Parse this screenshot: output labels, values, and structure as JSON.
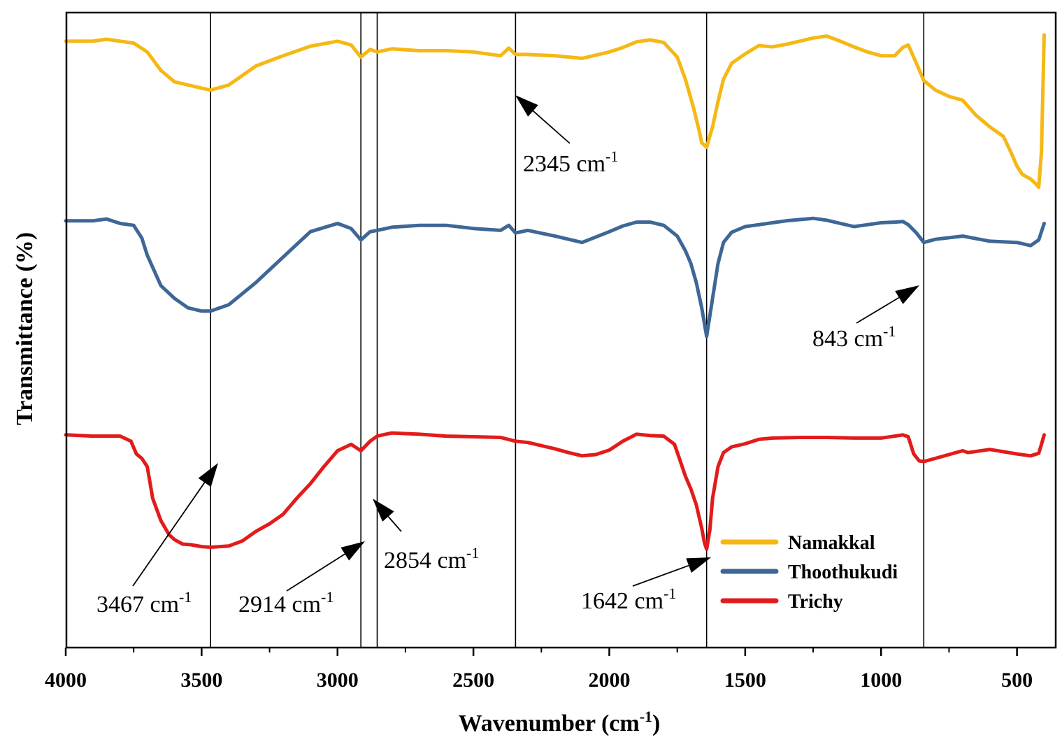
{
  "chart_data": {
    "type": "line",
    "title": "",
    "xlabel": "Wavenumber (cm",
    "xlabel_sup": "-1",
    "xlabel_tail": ")",
    "ylabel": "Transmittance (%)",
    "xlim": [
      4000,
      400
    ],
    "x_reversed": true,
    "ylim": [
      0,
      100
    ],
    "grid": false,
    "legend_position": "bottom-right",
    "x_ticks": [
      4000,
      3500,
      3000,
      2500,
      2000,
      1500,
      1000,
      500
    ],
    "x_tick_labels": [
      "4000",
      "3500",
      "3000",
      "2500",
      "2000",
      "1500",
      "1000",
      "500"
    ],
    "unit_label": "cm",
    "unit_sup": "-1",
    "reference_lines": [
      3467,
      2914,
      2854,
      2345,
      1642,
      843
    ],
    "annotations": [
      {
        "value": "2345",
        "points_to": 2345
      },
      {
        "value": "843",
        "points_to": 843
      },
      {
        "value": "3467",
        "points_to": 3467
      },
      {
        "value": "2914",
        "points_to": 2914
      },
      {
        "value": "2854",
        "points_to": 2854
      },
      {
        "value": "1642",
        "points_to": 1642
      }
    ],
    "series": [
      {
        "name": "Namakkal",
        "color": "#F5B814",
        "x": [
          4000,
          3900,
          3850,
          3800,
          3750,
          3700,
          3650,
          3600,
          3550,
          3500,
          3467,
          3400,
          3300,
          3200,
          3100,
          3000,
          2950,
          2914,
          2880,
          2854,
          2800,
          2700,
          2600,
          2500,
          2400,
          2370,
          2345,
          2300,
          2200,
          2100,
          2000,
          1950,
          1900,
          1850,
          1800,
          1750,
          1720,
          1690,
          1670,
          1660,
          1642,
          1620,
          1600,
          1580,
          1550,
          1500,
          1450,
          1400,
          1350,
          1300,
          1250,
          1200,
          1150,
          1100,
          1050,
          1000,
          950,
          920,
          900,
          870,
          843,
          800,
          750,
          700,
          650,
          600,
          550,
          520,
          500,
          480,
          450,
          430,
          420,
          410,
          400
        ],
        "values": [
          95.5,
          95.5,
          95.8,
          95.5,
          95.2,
          93.8,
          90.9,
          89.1,
          88.6,
          88.1,
          87.8,
          88.6,
          91.6,
          93.2,
          94.7,
          95.5,
          94.9,
          93.0,
          94.2,
          93.8,
          94.3,
          94.0,
          94.0,
          93.8,
          93.2,
          94.4,
          93.4,
          93.4,
          93.2,
          92.8,
          93.8,
          94.5,
          95.4,
          95.7,
          95.3,
          93.0,
          89.5,
          85.0,
          81.5,
          79.5,
          78.8,
          82.0,
          86.0,
          89.5,
          92.0,
          93.5,
          94.8,
          94.6,
          95.0,
          95.5,
          96.0,
          96.3,
          95.5,
          94.6,
          93.8,
          93.2,
          93.2,
          94.5,
          94.9,
          92.0,
          89.3,
          87.8,
          86.8,
          86.2,
          83.8,
          82.0,
          80.5,
          77.8,
          75.8,
          74.5,
          73.8,
          73.0,
          72.5,
          78.0,
          96.5
        ]
      },
      {
        "name": "Thoothukudi",
        "color": "#3E6796",
        "x": [
          4000,
          3900,
          3850,
          3800,
          3750,
          3720,
          3700,
          3650,
          3600,
          3550,
          3500,
          3467,
          3400,
          3300,
          3200,
          3100,
          3000,
          2950,
          2914,
          2880,
          2854,
          2800,
          2700,
          2600,
          2500,
          2400,
          2370,
          2345,
          2300,
          2200,
          2100,
          2000,
          1950,
          1900,
          1850,
          1800,
          1750,
          1720,
          1700,
          1680,
          1660,
          1642,
          1620,
          1600,
          1580,
          1550,
          1500,
          1450,
          1400,
          1350,
          1300,
          1250,
          1200,
          1100,
          1050,
          1000,
          950,
          920,
          900,
          870,
          843,
          800,
          700,
          600,
          500,
          450,
          420,
          400
        ],
        "values": [
          67.2,
          67.2,
          67.5,
          66.8,
          66.5,
          64.5,
          61.8,
          57.0,
          55.0,
          53.5,
          53.0,
          53.0,
          54.0,
          57.5,
          61.5,
          65.5,
          66.8,
          66.0,
          64.2,
          65.5,
          65.7,
          66.2,
          66.5,
          66.5,
          66.0,
          65.7,
          66.5,
          65.3,
          65.7,
          64.8,
          63.8,
          65.5,
          66.4,
          67.0,
          67.0,
          66.5,
          64.8,
          62.5,
          60.5,
          57.5,
          53.5,
          49.0,
          55.0,
          60.5,
          63.8,
          65.4,
          66.3,
          66.6,
          66.9,
          67.2,
          67.4,
          67.6,
          67.3,
          66.3,
          66.6,
          66.9,
          67.0,
          67.1,
          66.6,
          65.3,
          63.8,
          64.3,
          64.8,
          64.0,
          63.8,
          63.3,
          64.2,
          66.8
        ]
      },
      {
        "name": "Trichy",
        "color": "#E21B1B",
        "x": [
          4000,
          3900,
          3800,
          3760,
          3740,
          3720,
          3700,
          3680,
          3650,
          3620,
          3600,
          3570,
          3540,
          3500,
          3467,
          3400,
          3350,
          3300,
          3250,
          3200,
          3150,
          3100,
          3050,
          3000,
          2950,
          2914,
          2880,
          2854,
          2800,
          2700,
          2600,
          2500,
          2400,
          2345,
          2300,
          2200,
          2150,
          2100,
          2050,
          2000,
          1950,
          1900,
          1850,
          1800,
          1760,
          1740,
          1720,
          1700,
          1680,
          1660,
          1650,
          1642,
          1630,
          1620,
          1600,
          1580,
          1550,
          1500,
          1450,
          1400,
          1300,
          1200,
          1100,
          1000,
          950,
          920,
          900,
          880,
          860,
          843,
          800,
          700,
          680,
          600,
          500,
          450,
          420,
          410,
          400
        ],
        "values": [
          33.5,
          33.3,
          33.3,
          32.5,
          30.5,
          29.8,
          28.5,
          23.5,
          20.0,
          17.8,
          17.0,
          16.3,
          16.2,
          15.9,
          15.8,
          16.0,
          16.8,
          18.3,
          19.5,
          21.0,
          23.5,
          25.8,
          28.5,
          31.0,
          32.0,
          31.0,
          32.5,
          33.3,
          33.8,
          33.6,
          33.3,
          33.2,
          33.1,
          32.5,
          32.3,
          31.3,
          30.7,
          30.2,
          30.4,
          31.1,
          32.5,
          33.6,
          33.4,
          33.3,
          32.0,
          29.5,
          27.0,
          25.0,
          22.5,
          18.8,
          16.5,
          15.5,
          18.5,
          23.5,
          28.5,
          30.7,
          31.6,
          32.1,
          32.8,
          33.0,
          33.1,
          33.1,
          33.0,
          33.0,
          33.3,
          33.5,
          33.2,
          30.5,
          29.4,
          29.3,
          29.8,
          31.0,
          30.7,
          31.2,
          30.5,
          30.2,
          30.6,
          32.0,
          33.5
        ]
      }
    ]
  }
}
